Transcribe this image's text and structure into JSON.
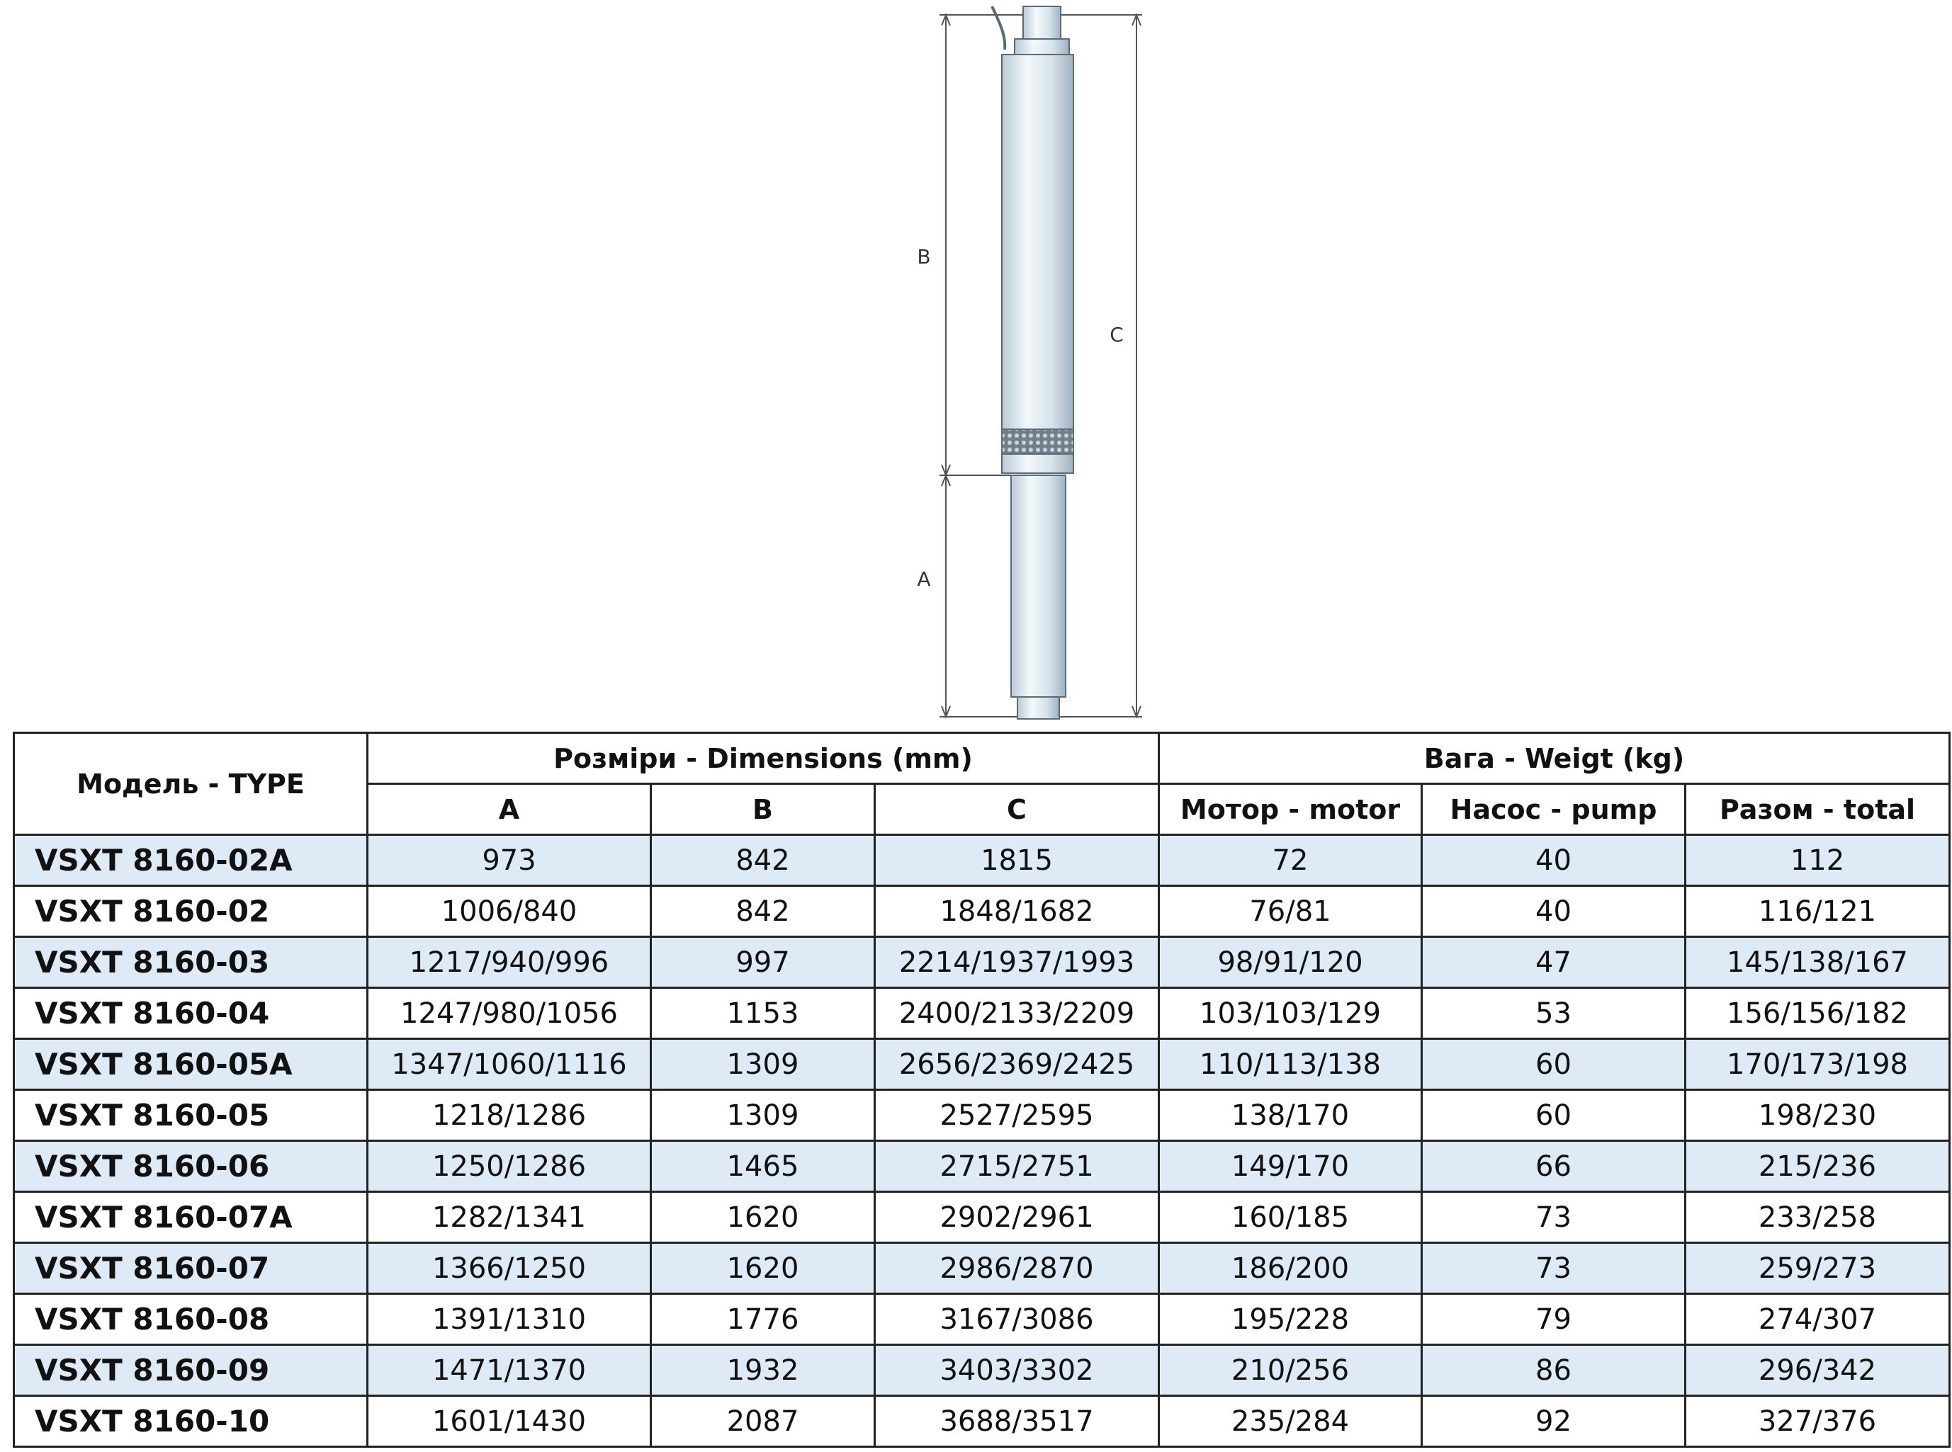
{
  "drawing": {
    "labels": {
      "a": "A",
      "b": "B",
      "c": "C"
    }
  },
  "table": {
    "header": {
      "model": "Модель - TYPE",
      "dimensions": "Розміри - Dimensions (mm)",
      "weight": "Вага - Weigt (kg)",
      "sub": [
        "A",
        "B",
        "C",
        "Мотор - motor",
        "Насос - pump",
        "Разом - total"
      ]
    },
    "rows": [
      [
        "VSXT  8160-02A",
        "973",
        "842",
        "1815",
        "72",
        "40",
        "112"
      ],
      [
        "VSXT  8160-02",
        "1006/840",
        "842",
        "1848/1682",
        "76/81",
        "40",
        "116/121"
      ],
      [
        "VSXT  8160-03",
        "1217/940/996",
        "997",
        "2214/1937/1993",
        "98/91/120",
        "47",
        "145/138/167"
      ],
      [
        "VSXT  8160-04",
        "1247/980/1056",
        "1153",
        "2400/2133/2209",
        "103/103/129",
        "53",
        "156/156/182"
      ],
      [
        "VSXT  8160-05A",
        "1347/1060/1116",
        "1309",
        "2656/2369/2425",
        "110/113/138",
        "60",
        "170/173/198"
      ],
      [
        "VSXT  8160-05",
        "1218/1286",
        "1309",
        "2527/2595",
        "138/170",
        "60",
        "198/230"
      ],
      [
        "VSXT  8160-06",
        "1250/1286",
        "1465",
        "2715/2751",
        "149/170",
        "66",
        "215/236"
      ],
      [
        "VSXT  8160-07A",
        "1282/1341",
        "1620",
        "2902/2961",
        "160/185",
        "73",
        "233/258"
      ],
      [
        "VSXT  8160-07",
        "1366/1250",
        "1620",
        "2986/2870",
        "186/200",
        "73",
        "259/273"
      ],
      [
        "VSXT  8160-08",
        "1391/1310",
        "1776",
        "3167/3086",
        "195/228",
        "79",
        "274/307"
      ],
      [
        "VSXT  8160-09",
        "1471/1370",
        "1932",
        "3403/3302",
        "210/256",
        "86",
        "296/342"
      ],
      [
        "VSXT  8160-10",
        "1601/1430",
        "2087",
        "3688/3517",
        "235/284",
        "92",
        "327/376"
      ]
    ]
  }
}
